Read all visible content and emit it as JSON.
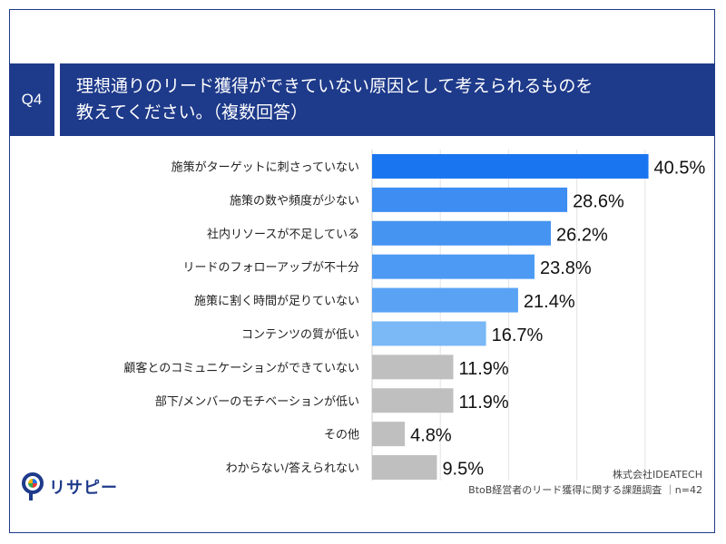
{
  "question": {
    "badge": "Q4",
    "line1": "理想通りのリード獲得ができていない原因として考えられるものを",
    "line2": "教えてください。（複数回答）"
  },
  "chart_data": {
    "type": "bar",
    "orientation": "horizontal",
    "categories": [
      "施策がターゲットに刺さっていない",
      "施策の数や頻度が少ない",
      "社内リソースが不足している",
      "リードのフォローアップが不十分",
      "施策に割く時間が足りていない",
      "コンテンツの質が低い",
      "顧客とのコミュニケーションができていない",
      "部下/メンバーのモチベーションが低い",
      "その他",
      "わからない/答えられない"
    ],
    "values": [
      40.5,
      28.6,
      26.2,
      23.8,
      21.4,
      16.7,
      11.9,
      11.9,
      4.8,
      9.5
    ],
    "value_labels": [
      "40.5%",
      "28.6%",
      "26.2%",
      "23.8%",
      "21.4%",
      "16.7%",
      "11.9%",
      "11.9%",
      "4.8%",
      "9.5%"
    ],
    "xlim": [
      0,
      50
    ],
    "grid": true,
    "colors": [
      "#1a75f0",
      "#3d8df2",
      "#4594f2",
      "#4c9af3",
      "#5aa3f4",
      "#7ab8f6",
      "#bfbfbf",
      "#bfbfbf",
      "#bfbfbf",
      "#bfbfbf"
    ]
  },
  "logo": {
    "text": "リサピー"
  },
  "source": {
    "line1": "株式会社IDEATECH",
    "line2": "BtoB経営者のリード獲得に関する課題調査 ｜n=42"
  }
}
